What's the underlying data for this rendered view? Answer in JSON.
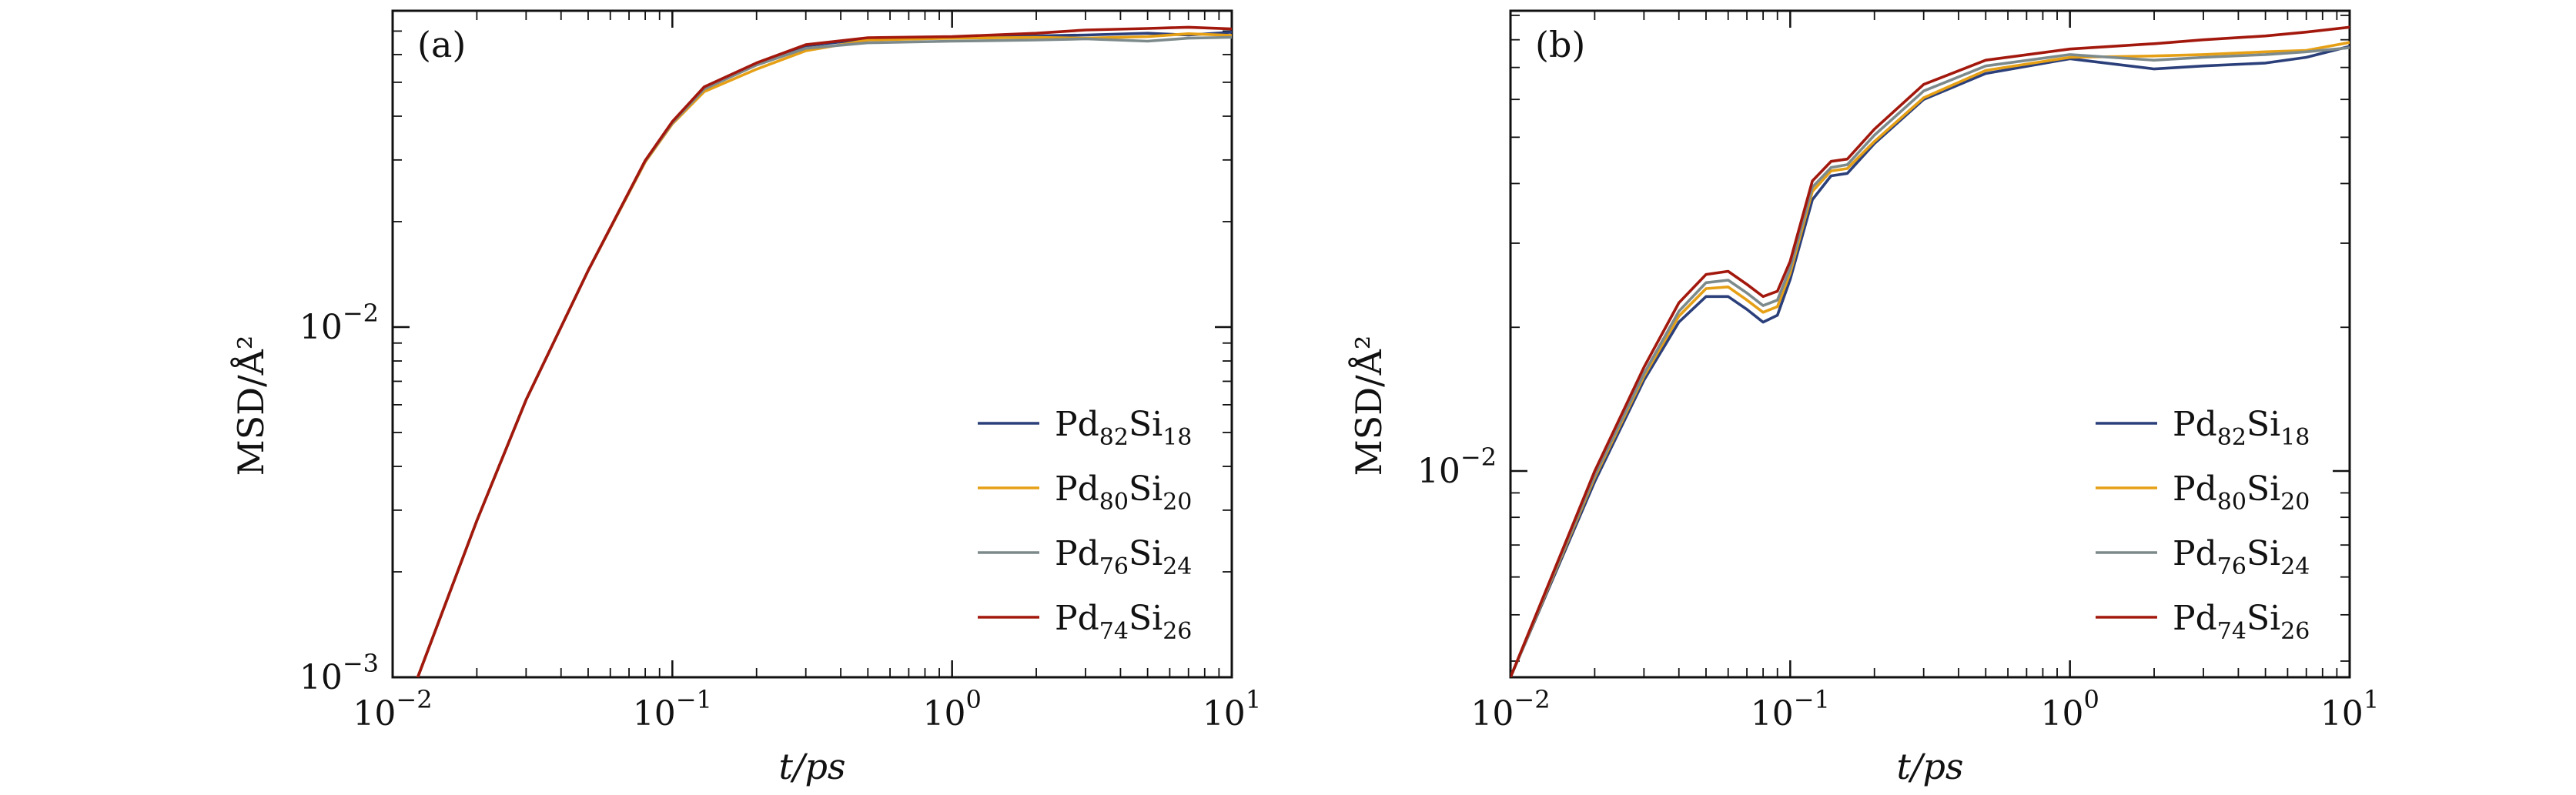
{
  "chart_data": [
    {
      "type": "line",
      "panel_label": "(a)",
      "xlabel": "t/ps",
      "ylabel": "MSD/Å²",
      "xscale": "log",
      "yscale": "log",
      "xlim": [
        0.01,
        10
      ],
      "ylim": [
        0.001,
        0.08
      ],
      "x_ticks": [
        {
          "value": 0.01,
          "base": "10",
          "exp": "−2"
        },
        {
          "value": 0.1,
          "base": "10",
          "exp": "−1"
        },
        {
          "value": 1,
          "base": "10",
          "exp": "0"
        },
        {
          "value": 10,
          "base": "10",
          "exp": "1"
        }
      ],
      "y_ticks": [
        {
          "value": 0.001,
          "base": "10",
          "exp": "−3"
        },
        {
          "value": 0.01,
          "base": "10",
          "exp": "−2"
        }
      ],
      "legend_position": "lower-right",
      "series": [
        {
          "name": "Pd82Si18",
          "label_parts": [
            [
              "Pd",
              ""
            ],
            [
              "82",
              "sub"
            ],
            [
              "Si",
              ""
            ],
            [
              "18",
              "sub"
            ]
          ],
          "color": "#2b3f7a",
          "x": [
            0.012,
            0.02,
            0.03,
            0.05,
            0.08,
            0.1,
            0.13,
            0.2,
            0.3,
            0.5,
            1,
            2,
            3,
            5,
            7,
            10
          ],
          "y": [
            0.00095,
            0.0028,
            0.0062,
            0.0145,
            0.0298,
            0.0385,
            0.0482,
            0.0565,
            0.0635,
            0.0665,
            0.0672,
            0.0678,
            0.0682,
            0.069,
            0.0682,
            0.0695
          ]
        },
        {
          "name": "Pd80Si20",
          "label_parts": [
            [
              "Pd",
              ""
            ],
            [
              "80",
              "sub"
            ],
            [
              "Si",
              ""
            ],
            [
              "20",
              "sub"
            ]
          ],
          "color": "#e6a015",
          "x": [
            0.012,
            0.02,
            0.03,
            0.05,
            0.08,
            0.1,
            0.13,
            0.2,
            0.3,
            0.5,
            1,
            2,
            3,
            5,
            7,
            10
          ],
          "y": [
            0.00095,
            0.0028,
            0.0062,
            0.0145,
            0.0296,
            0.038,
            0.047,
            0.0545,
            0.0615,
            0.066,
            0.0668,
            0.0672,
            0.0668,
            0.0675,
            0.0688,
            0.068
          ]
        },
        {
          "name": "Pd76Si24",
          "label_parts": [
            [
              "Pd",
              ""
            ],
            [
              "76",
              "sub"
            ],
            [
              "Si",
              ""
            ],
            [
              "24",
              "sub"
            ]
          ],
          "color": "#7d8a8c",
          "x": [
            0.012,
            0.02,
            0.03,
            0.05,
            0.08,
            0.1,
            0.13,
            0.2,
            0.3,
            0.5,
            1,
            2,
            3,
            5,
            7,
            10
          ],
          "y": [
            0.00095,
            0.0028,
            0.0062,
            0.0145,
            0.0298,
            0.0383,
            0.0478,
            0.056,
            0.0625,
            0.0648,
            0.0655,
            0.066,
            0.0665,
            0.0655,
            0.0668,
            0.0672
          ]
        },
        {
          "name": "Pd74Si26",
          "label_parts": [
            [
              "Pd",
              ""
            ],
            [
              "74",
              "sub"
            ],
            [
              "Si",
              ""
            ],
            [
              "26",
              "sub"
            ]
          ],
          "color": "#a3180d",
          "x": [
            0.012,
            0.02,
            0.03,
            0.05,
            0.08,
            0.1,
            0.13,
            0.2,
            0.3,
            0.5,
            1,
            2,
            3,
            5,
            7,
            10
          ],
          "y": [
            0.00095,
            0.0028,
            0.0062,
            0.0145,
            0.0299,
            0.0386,
            0.0485,
            0.0568,
            0.064,
            0.067,
            0.0675,
            0.069,
            0.0705,
            0.0712,
            0.0718,
            0.071
          ]
        }
      ]
    },
    {
      "type": "line",
      "panel_label": "(b)",
      "xlabel": "t/ps",
      "ylabel": "MSD/Å²",
      "xscale": "log",
      "yscale": "log",
      "xlim": [
        0.01,
        10
      ],
      "ylim": [
        0.0037,
        0.092
      ],
      "x_ticks": [
        {
          "value": 0.01,
          "base": "10",
          "exp": "−2"
        },
        {
          "value": 0.1,
          "base": "10",
          "exp": "−1"
        },
        {
          "value": 1,
          "base": "10",
          "exp": "0"
        },
        {
          "value": 10,
          "base": "10",
          "exp": "1"
        }
      ],
      "y_ticks": [
        {
          "value": 0.01,
          "base": "10",
          "exp": "−2"
        }
      ],
      "legend_position": "lower-right",
      "series": [
        {
          "name": "Pd82Si18",
          "label_parts": [
            [
              "Pd",
              ""
            ],
            [
              "82",
              "sub"
            ],
            [
              "Si",
              ""
            ],
            [
              "18",
              "sub"
            ]
          ],
          "color": "#2b3f7a",
          "x": [
            0.01,
            0.02,
            0.03,
            0.04,
            0.05,
            0.06,
            0.07,
            0.08,
            0.09,
            0.1,
            0.12,
            0.14,
            0.16,
            0.2,
            0.3,
            0.5,
            1,
            2,
            3,
            5,
            7,
            10
          ],
          "y": [
            0.0037,
            0.0095,
            0.0155,
            0.0205,
            0.0232,
            0.0232,
            0.0218,
            0.0205,
            0.0212,
            0.0252,
            0.037,
            0.0415,
            0.042,
            0.0485,
            0.06,
            0.068,
            0.073,
            0.0695,
            0.0705,
            0.0715,
            0.0735,
            0.0775
          ]
        },
        {
          "name": "Pd80Si20",
          "label_parts": [
            [
              "Pd",
              ""
            ],
            [
              "80",
              "sub"
            ],
            [
              "Si",
              ""
            ],
            [
              "20",
              "sub"
            ]
          ],
          "color": "#e6a015",
          "x": [
            0.01,
            0.02,
            0.03,
            0.04,
            0.05,
            0.06,
            0.07,
            0.08,
            0.09,
            0.1,
            0.12,
            0.14,
            0.16,
            0.2,
            0.3,
            0.5,
            1,
            2,
            3,
            5,
            7,
            10
          ],
          "y": [
            0.0037,
            0.0097,
            0.0158,
            0.0211,
            0.0241,
            0.0243,
            0.0228,
            0.0215,
            0.0221,
            0.026,
            0.0385,
            0.0425,
            0.043,
            0.049,
            0.0605,
            0.069,
            0.0735,
            0.074,
            0.0745,
            0.0755,
            0.076,
            0.079
          ]
        },
        {
          "name": "Pd76Si24",
          "label_parts": [
            [
              "Pd",
              ""
            ],
            [
              "76",
              "sub"
            ],
            [
              "Si",
              ""
            ],
            [
              "24",
              "sub"
            ]
          ],
          "color": "#7d8a8c",
          "x": [
            0.01,
            0.02,
            0.03,
            0.04,
            0.05,
            0.06,
            0.07,
            0.08,
            0.09,
            0.1,
            0.12,
            0.14,
            0.16,
            0.2,
            0.3,
            0.5,
            1,
            2,
            3,
            5,
            7,
            10
          ],
          "y": [
            0.0037,
            0.0098,
            0.016,
            0.0216,
            0.0248,
            0.0251,
            0.0236,
            0.0222,
            0.0228,
            0.0266,
            0.0393,
            0.0432,
            0.0438,
            0.0505,
            0.0625,
            0.0705,
            0.0745,
            0.0725,
            0.0735,
            0.0745,
            0.0755,
            0.077
          ]
        },
        {
          "name": "Pd74Si26",
          "label_parts": [
            [
              "Pd",
              ""
            ],
            [
              "74",
              "sub"
            ],
            [
              "Si",
              ""
            ],
            [
              "26",
              "sub"
            ]
          ],
          "color": "#a3180d",
          "x": [
            0.01,
            0.02,
            0.03,
            0.04,
            0.05,
            0.06,
            0.07,
            0.08,
            0.09,
            0.1,
            0.12,
            0.14,
            0.16,
            0.2,
            0.3,
            0.5,
            1,
            2,
            3,
            5,
            7,
            10
          ],
          "y": [
            0.0037,
            0.01,
            0.0165,
            0.0225,
            0.0258,
            0.0262,
            0.0246,
            0.0232,
            0.0238,
            0.0275,
            0.0405,
            0.0445,
            0.045,
            0.052,
            0.0645,
            0.0725,
            0.0765,
            0.0785,
            0.08,
            0.0815,
            0.083,
            0.085
          ]
        }
      ]
    }
  ]
}
